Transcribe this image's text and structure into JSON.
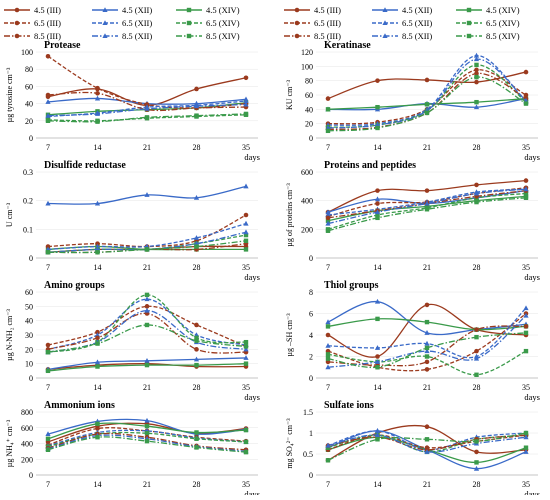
{
  "legend_items": [
    {
      "label": "4.5 (III)",
      "color": "#9b3a1e",
      "dash": "solid",
      "marker": "circle"
    },
    {
      "label": "4.5 (XII)",
      "color": "#3a6ac8",
      "dash": "solid",
      "marker": "triangle"
    },
    {
      "label": "4.5 (XIV)",
      "color": "#3a9a4a",
      "dash": "solid",
      "marker": "square"
    },
    {
      "label": "6.5 (III)",
      "color": "#9b3a1e",
      "dash": "dashed",
      "marker": "circle"
    },
    {
      "label": "6.5 (XII)",
      "color": "#3a6ac8",
      "dash": "dashed",
      "marker": "triangle"
    },
    {
      "label": "6.5 (XIV)",
      "color": "#3a9a4a",
      "dash": "dashed",
      "marker": "square"
    },
    {
      "label": "8.5 (III)",
      "color": "#9b3a1e",
      "dash": "dashdot",
      "marker": "circle"
    },
    {
      "label": "8.5 (XII)",
      "color": "#3a6ac8",
      "dash": "dashdot",
      "marker": "triangle"
    },
    {
      "label": "8.5 (XIV)",
      "color": "#3a9a4a",
      "dash": "dashdot",
      "marker": "square"
    }
  ],
  "xlabel_unit": "days",
  "chart_data": [
    {
      "type": "line",
      "title": "Protease",
      "ylabel": "µg tyrosine cm⁻³",
      "categories": [
        7,
        14,
        21,
        28,
        35
      ],
      "ylim": [
        0,
        100
      ],
      "yticks": [
        0,
        20,
        40,
        60,
        80,
        100
      ],
      "xticks": [
        7,
        14,
        21,
        28,
        35
      ],
      "series": [
        {
          "name": "4.5 (III)",
          "values": [
            48,
            57,
            38,
            57,
            70
          ]
        },
        {
          "name": "4.5 (XII)",
          "values": [
            42,
            46,
            40,
            40,
            45
          ]
        },
        {
          "name": "4.5 (XIV)",
          "values": [
            27,
            31,
            33,
            35,
            41
          ]
        },
        {
          "name": "6.5 (III)",
          "values": [
            95,
            58,
            39,
            35,
            40
          ]
        },
        {
          "name": "6.5 (XII)",
          "values": [
            25,
            29,
            36,
            38,
            43
          ]
        },
        {
          "name": "6.5 (XIV)",
          "values": [
            21,
            20,
            23,
            25,
            27
          ]
        },
        {
          "name": "8.5 (III)",
          "values": [
            50,
            52,
            33,
            35,
            36
          ]
        },
        {
          "name": "8.5 (XII)",
          "values": [
            26,
            28,
            34,
            37,
            39
          ]
        },
        {
          "name": "8.5 (XIV)",
          "values": [
            20,
            19,
            24,
            26,
            28
          ]
        }
      ]
    },
    {
      "type": "line",
      "title": "Keratinase",
      "ylabel": "KU cm⁻³",
      "categories": [
        7,
        14,
        21,
        28,
        35
      ],
      "ylim": [
        0,
        120
      ],
      "yticks": [
        0,
        20,
        40,
        60,
        80,
        100,
        120
      ],
      "xticks": [
        7,
        14,
        21,
        28,
        35
      ],
      "series": [
        {
          "name": "4.5 (III)",
          "values": [
            55,
            80,
            81,
            78,
            92
          ]
        },
        {
          "name": "4.5 (XII)",
          "values": [
            40,
            40,
            48,
            43,
            55
          ]
        },
        {
          "name": "4.5 (XIV)",
          "values": [
            40,
            43,
            47,
            50,
            55
          ]
        },
        {
          "name": "6.5 (III)",
          "values": [
            20,
            22,
            40,
            95,
            60
          ]
        },
        {
          "name": "6.5 (XII)",
          "values": [
            18,
            20,
            40,
            115,
            50
          ]
        },
        {
          "name": "6.5 (XIV)",
          "values": [
            15,
            18,
            38,
            102,
            50
          ]
        },
        {
          "name": "8.5 (III)",
          "values": [
            12,
            15,
            35,
            90,
            55
          ]
        },
        {
          "name": "8.5 (XII)",
          "values": [
            14,
            18,
            38,
            110,
            52
          ]
        },
        {
          "name": "8.5 (XIV)",
          "values": [
            10,
            14,
            35,
            85,
            48
          ]
        }
      ]
    },
    {
      "type": "line",
      "title": "Disulfide reductase",
      "ylabel": "U cm⁻³",
      "categories": [
        7,
        14,
        21,
        28,
        35
      ],
      "ylim": [
        0,
        0.3
      ],
      "yticks": [
        0,
        0.1,
        0.2,
        0.3
      ],
      "xticks": [
        7,
        14,
        21,
        28,
        35
      ],
      "series": [
        {
          "name": "4.5 (III)",
          "values": [
            0.02,
            0.03,
            0.03,
            0.04,
            0.04
          ]
        },
        {
          "name": "4.5 (XII)",
          "values": [
            0.19,
            0.19,
            0.22,
            0.21,
            0.25
          ]
        },
        {
          "name": "4.5 (XIV)",
          "values": [
            0.03,
            0.04,
            0.03,
            0.03,
            0.03
          ]
        },
        {
          "name": "6.5 (III)",
          "values": [
            0.04,
            0.05,
            0.04,
            0.06,
            0.15
          ]
        },
        {
          "name": "6.5 (XII)",
          "values": [
            0.03,
            0.04,
            0.04,
            0.07,
            0.12
          ]
        },
        {
          "name": "6.5 (XIV)",
          "values": [
            0.02,
            0.03,
            0.03,
            0.05,
            0.08
          ]
        },
        {
          "name": "8.5 (III)",
          "values": [
            0.02,
            0.02,
            0.03,
            0.03,
            0.05
          ]
        },
        {
          "name": "8.5 (XII)",
          "values": [
            0.02,
            0.03,
            0.03,
            0.05,
            0.09
          ]
        },
        {
          "name": "8.5 (XIV)",
          "values": [
            0.02,
            0.02,
            0.03,
            0.04,
            0.06
          ]
        }
      ]
    },
    {
      "type": "line",
      "title": "Proteins and peptides",
      "ylabel": "µg of proteins cm⁻³",
      "categories": [
        7,
        14,
        21,
        28,
        35
      ],
      "ylim": [
        0,
        600
      ],
      "yticks": [
        0,
        200,
        400,
        600
      ],
      "xticks": [
        7,
        14,
        21,
        28,
        35
      ],
      "series": [
        {
          "name": "4.5 (III)",
          "values": [
            320,
            470,
            470,
            510,
            540
          ]
        },
        {
          "name": "4.5 (XII)",
          "values": [
            320,
            410,
            380,
            420,
            470
          ]
        },
        {
          "name": "4.5 (XIV)",
          "values": [
            260,
            330,
            360,
            400,
            430
          ]
        },
        {
          "name": "6.5 (III)",
          "values": [
            290,
            380,
            390,
            450,
            490
          ]
        },
        {
          "name": "6.5 (XII)",
          "values": [
            300,
            340,
            390,
            460,
            480
          ]
        },
        {
          "name": "6.5 (XIV)",
          "values": [
            200,
            300,
            350,
            420,
            450
          ]
        },
        {
          "name": "8.5 (III)",
          "values": [
            280,
            330,
            380,
            430,
            470
          ]
        },
        {
          "name": "8.5 (XII)",
          "values": [
            240,
            320,
            380,
            450,
            480
          ]
        },
        {
          "name": "8.5 (XIV)",
          "values": [
            190,
            280,
            340,
            390,
            420
          ]
        }
      ]
    },
    {
      "type": "line",
      "title": "Amino groups",
      "ylabel": "µg N-NH₂ cm⁻³",
      "categories": [
        7,
        14,
        21,
        28,
        35
      ],
      "ylim": [
        0,
        60
      ],
      "yticks": [
        0,
        10,
        20,
        30,
        40,
        50,
        60
      ],
      "xticks": [
        7,
        14,
        21,
        28,
        35
      ],
      "series": [
        {
          "name": "4.5 (III)",
          "values": [
            6,
            9,
            10,
            8,
            8
          ]
        },
        {
          "name": "4.5 (XII)",
          "values": [
            6,
            11,
            12,
            13,
            14
          ]
        },
        {
          "name": "4.5 (XIV)",
          "values": [
            5,
            8,
            9,
            9,
            10
          ]
        },
        {
          "name": "6.5 (III)",
          "values": [
            23,
            32,
            50,
            37,
            22
          ]
        },
        {
          "name": "6.5 (XII)",
          "values": [
            20,
            30,
            55,
            30,
            23
          ]
        },
        {
          "name": "6.5 (XIV)",
          "values": [
            18,
            25,
            58,
            28,
            25
          ]
        },
        {
          "name": "8.5 (III)",
          "values": [
            20,
            28,
            45,
            20,
            18
          ]
        },
        {
          "name": "8.5 (XII)",
          "values": [
            18,
            25,
            47,
            25,
            20
          ]
        },
        {
          "name": "8.5 (XIV)",
          "values": [
            18,
            24,
            37,
            26,
            22
          ]
        }
      ]
    },
    {
      "type": "line",
      "title": "Thiol groups",
      "ylabel": "µg –SH cm⁻³",
      "categories": [
        7,
        14,
        21,
        28,
        35
      ],
      "ylim": [
        0,
        8
      ],
      "yticks": [
        0,
        2,
        4,
        6,
        8
      ],
      "xticks": [
        7,
        14,
        21,
        28,
        35
      ],
      "series": [
        {
          "name": "4.5 (III)",
          "values": [
            4,
            2,
            6.8,
            4.5,
            4
          ]
        },
        {
          "name": "4.5 (XII)",
          "values": [
            5.2,
            7.1,
            4.2,
            4.5,
            5
          ]
        },
        {
          "name": "4.5 (XIV)",
          "values": [
            4.8,
            5.5,
            5.2,
            4.5,
            4.8
          ]
        },
        {
          "name": "6.5 (III)",
          "values": [
            2.5,
            1,
            0.8,
            2.5,
            6
          ]
        },
        {
          "name": "6.5 (XII)",
          "values": [
            3,
            2.8,
            3.2,
            2,
            6.5
          ]
        },
        {
          "name": "6.5 (XIV)",
          "values": [
            2.2,
            1.5,
            2,
            0.3,
            2.5
          ]
        },
        {
          "name": "8.5 (III)",
          "values": [
            1.5,
            1.2,
            1.5,
            4.5,
            4.8
          ]
        },
        {
          "name": "8.5 (XII)",
          "values": [
            1,
            1.5,
            2.5,
            1.8,
            5.8
          ]
        },
        {
          "name": "8.5 (XIV)",
          "values": [
            1.8,
            1,
            2.8,
            3.8,
            4.2
          ]
        }
      ]
    },
    {
      "type": "line",
      "title": "Ammonium ions",
      "ylabel": "µg NH₄⁺ cm⁻³",
      "categories": [
        7,
        14,
        21,
        28,
        35
      ],
      "ylim": [
        0,
        800
      ],
      "yticks": [
        0,
        200,
        400,
        600,
        800
      ],
      "xticks": [
        7,
        14,
        21,
        28,
        35
      ],
      "series": [
        {
          "name": "4.5 (III)",
          "values": [
            420,
            620,
            650,
            530,
            590
          ]
        },
        {
          "name": "4.5 (XII)",
          "values": [
            520,
            680,
            690,
            520,
            580
          ]
        },
        {
          "name": "4.5 (XIV)",
          "values": [
            460,
            650,
            620,
            540,
            570
          ]
        },
        {
          "name": "6.5 (III)",
          "values": [
            380,
            590,
            560,
            480,
            430
          ]
        },
        {
          "name": "6.5 (XII)",
          "values": [
            370,
            540,
            560,
            470,
            420
          ]
        },
        {
          "name": "6.5 (XIV)",
          "values": [
            360,
            520,
            530,
            460,
            420
          ]
        },
        {
          "name": "8.5 (III)",
          "values": [
            340,
            520,
            480,
            370,
            320
          ]
        },
        {
          "name": "8.5 (XII)",
          "values": [
            330,
            500,
            460,
            360,
            300
          ]
        },
        {
          "name": "8.5 (XIV)",
          "values": [
            320,
            480,
            430,
            350,
            290
          ]
        }
      ]
    },
    {
      "type": "line",
      "title": "Sulfate ions",
      "ylabel": "mg SO₄²⁻ cm⁻³",
      "categories": [
        7,
        14,
        21,
        28,
        35
      ],
      "ylim": [
        0,
        1.5
      ],
      "yticks": [
        0,
        0.5,
        1,
        1.5
      ],
      "xticks": [
        7,
        14,
        21,
        28,
        35
      ],
      "series": [
        {
          "name": "4.5 (III)",
          "values": [
            0.35,
            1.0,
            1.15,
            0.55,
            0.6
          ]
        },
        {
          "name": "4.5 (XII)",
          "values": [
            0.65,
            1.05,
            0.6,
            0.15,
            0.55
          ]
        },
        {
          "name": "4.5 (XIV)",
          "values": [
            0.6,
            0.9,
            0.6,
            0.3,
            0.65
          ]
        },
        {
          "name": "6.5 (III)",
          "values": [
            0.6,
            0.95,
            0.65,
            0.8,
            0.95
          ]
        },
        {
          "name": "6.5 (XII)",
          "values": [
            0.7,
            1.05,
            0.6,
            0.9,
            1.0
          ]
        },
        {
          "name": "6.5 (XIV)",
          "values": [
            0.65,
            0.95,
            0.55,
            0.85,
            0.95
          ]
        },
        {
          "name": "8.5 (III)",
          "values": [
            0.7,
            0.9,
            0.6,
            0.85,
            0.95
          ]
        },
        {
          "name": "8.5 (XII)",
          "values": [
            0.7,
            0.95,
            0.55,
            0.75,
            0.9
          ]
        },
        {
          "name": "8.5 (XIV)",
          "values": [
            0.35,
            0.85,
            0.85,
            0.8,
            1.0
          ]
        }
      ]
    }
  ]
}
